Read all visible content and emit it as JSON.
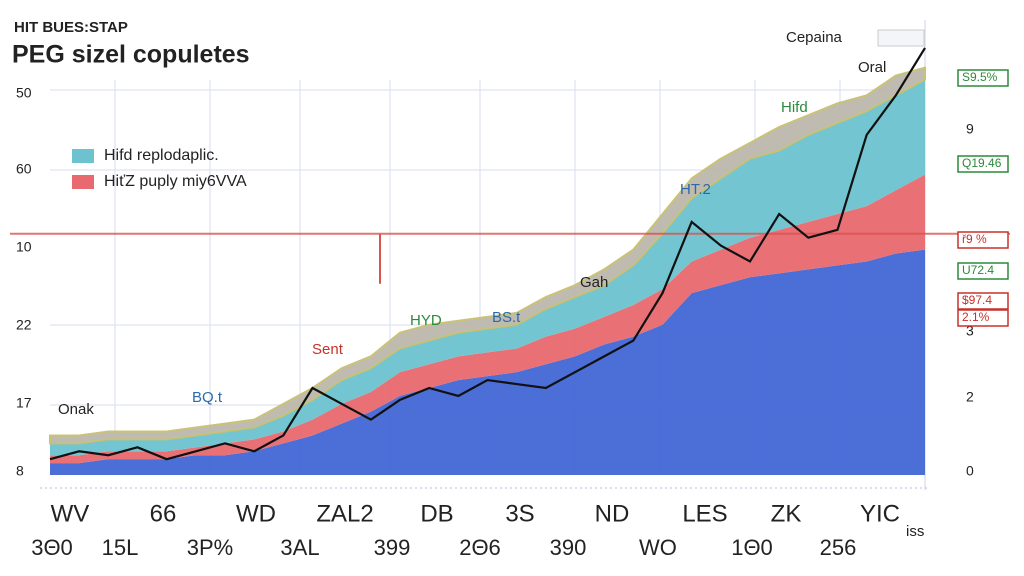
{
  "chart_data": {
    "type": "stacked_area_line",
    "supertitle": "HIT BUES:STAP",
    "title": "PEG sizel copuletes",
    "x": [
      0,
      1,
      2,
      3,
      4,
      5,
      6,
      7,
      8,
      9,
      10,
      11,
      12,
      13,
      14,
      15,
      16,
      17,
      18,
      19,
      20,
      21,
      22,
      23,
      24,
      25,
      26,
      27,
      28,
      29,
      30
    ],
    "xlim": [
      0,
      30
    ],
    "ylim": [
      0,
      110
    ],
    "series": [
      {
        "color": "#4166d5",
        "values": [
          3,
          3,
          4,
          4,
          4,
          5,
          5,
          6,
          8,
          10,
          13,
          16,
          20,
          22,
          24,
          25,
          26,
          28,
          30,
          33,
          35,
          38,
          46,
          48,
          50,
          51,
          52,
          53,
          54,
          56,
          57
        ]
      },
      {
        "name": "HiťZ puply miy6VVA",
        "color": "#e8696e",
        "values": [
          2,
          2,
          2,
          2,
          2,
          2,
          3,
          3,
          3,
          4,
          5,
          5,
          6,
          6,
          6,
          6,
          6,
          7,
          7,
          7,
          8,
          9,
          8,
          9,
          10,
          11,
          12,
          13,
          14,
          16,
          19
        ]
      },
      {
        "name": "Hifd replodaplic.",
        "color": "#6cc3cf",
        "values": [
          3,
          3,
          3,
          3,
          3,
          3,
          3,
          3,
          4,
          5,
          6,
          6,
          6,
          6,
          6,
          6,
          6,
          7,
          8,
          8,
          10,
          14,
          16,
          18,
          20,
          20,
          22,
          23,
          24,
          24,
          24
        ]
      },
      {
        "color": "#bdb8ac",
        "values": [
          2,
          2,
          2,
          2,
          2,
          2,
          2,
          2,
          3,
          3,
          3,
          3,
          4,
          4,
          3,
          3,
          3,
          3,
          3,
          4,
          4,
          5,
          5,
          5,
          4,
          6,
          5,
          5,
          4,
          5,
          3
        ]
      }
    ],
    "line": {
      "name": "Cepaina",
      "color": "#111111",
      "values": [
        4,
        6,
        5,
        7,
        4,
        6,
        8,
        6,
        10,
        22,
        18,
        14,
        19,
        22,
        20,
        24,
        23,
        22,
        26,
        30,
        34,
        46,
        64,
        58,
        54,
        66,
        60,
        62,
        86,
        96,
        108
      ]
    },
    "reference_line": 61,
    "annotations": [
      {
        "text": "Oral",
        "color": "#222"
      },
      {
        "text": "Hifd",
        "color": "#2a8a3a"
      },
      {
        "text": "HT.2",
        "color": "#2a6aa8"
      },
      {
        "text": "Gah",
        "color": "#222"
      },
      {
        "text": "HYD",
        "color": "#2a8a3a"
      },
      {
        "text": "BS.t",
        "color": "#2a6aa8"
      },
      {
        "text": "Sent",
        "color": "#c9302c"
      },
      {
        "text": "BQ.t",
        "color": "#2a6aa8"
      },
      {
        "text": "Onak",
        "color": "#222"
      }
    ],
    "left_labels": [
      "50",
      "60",
      "10",
      "22",
      "17",
      "8"
    ],
    "right_axis_labels": [
      "9",
      "3",
      "2",
      "0"
    ],
    "right_boxes": [
      {
        "text": "S9.5%",
        "color": "#2a8a3a"
      },
      {
        "text": "Q19.46",
        "color": "#2a8a3a"
      },
      {
        "text": "ř9 %",
        "color": "#c9302c"
      },
      {
        "text": "U72.4",
        "color": "#2a8a3a"
      },
      {
        "text": "$97.4",
        "color": "#c9302c"
      },
      {
        "text": "2.1%",
        "color": "#c9302c"
      }
    ],
    "categories": [
      "WV",
      "66",
      "WD",
      "ZAL2",
      "DB",
      "3S",
      "ND",
      "LES",
      "ZK",
      "YIC"
    ],
    "sub_categories": [
      "3Θ0",
      "15L",
      "3P%",
      "3AL",
      "399",
      "2Θ6",
      "390",
      "WO",
      "1Θ0",
      "256"
    ],
    "corner_label": "iss"
  }
}
